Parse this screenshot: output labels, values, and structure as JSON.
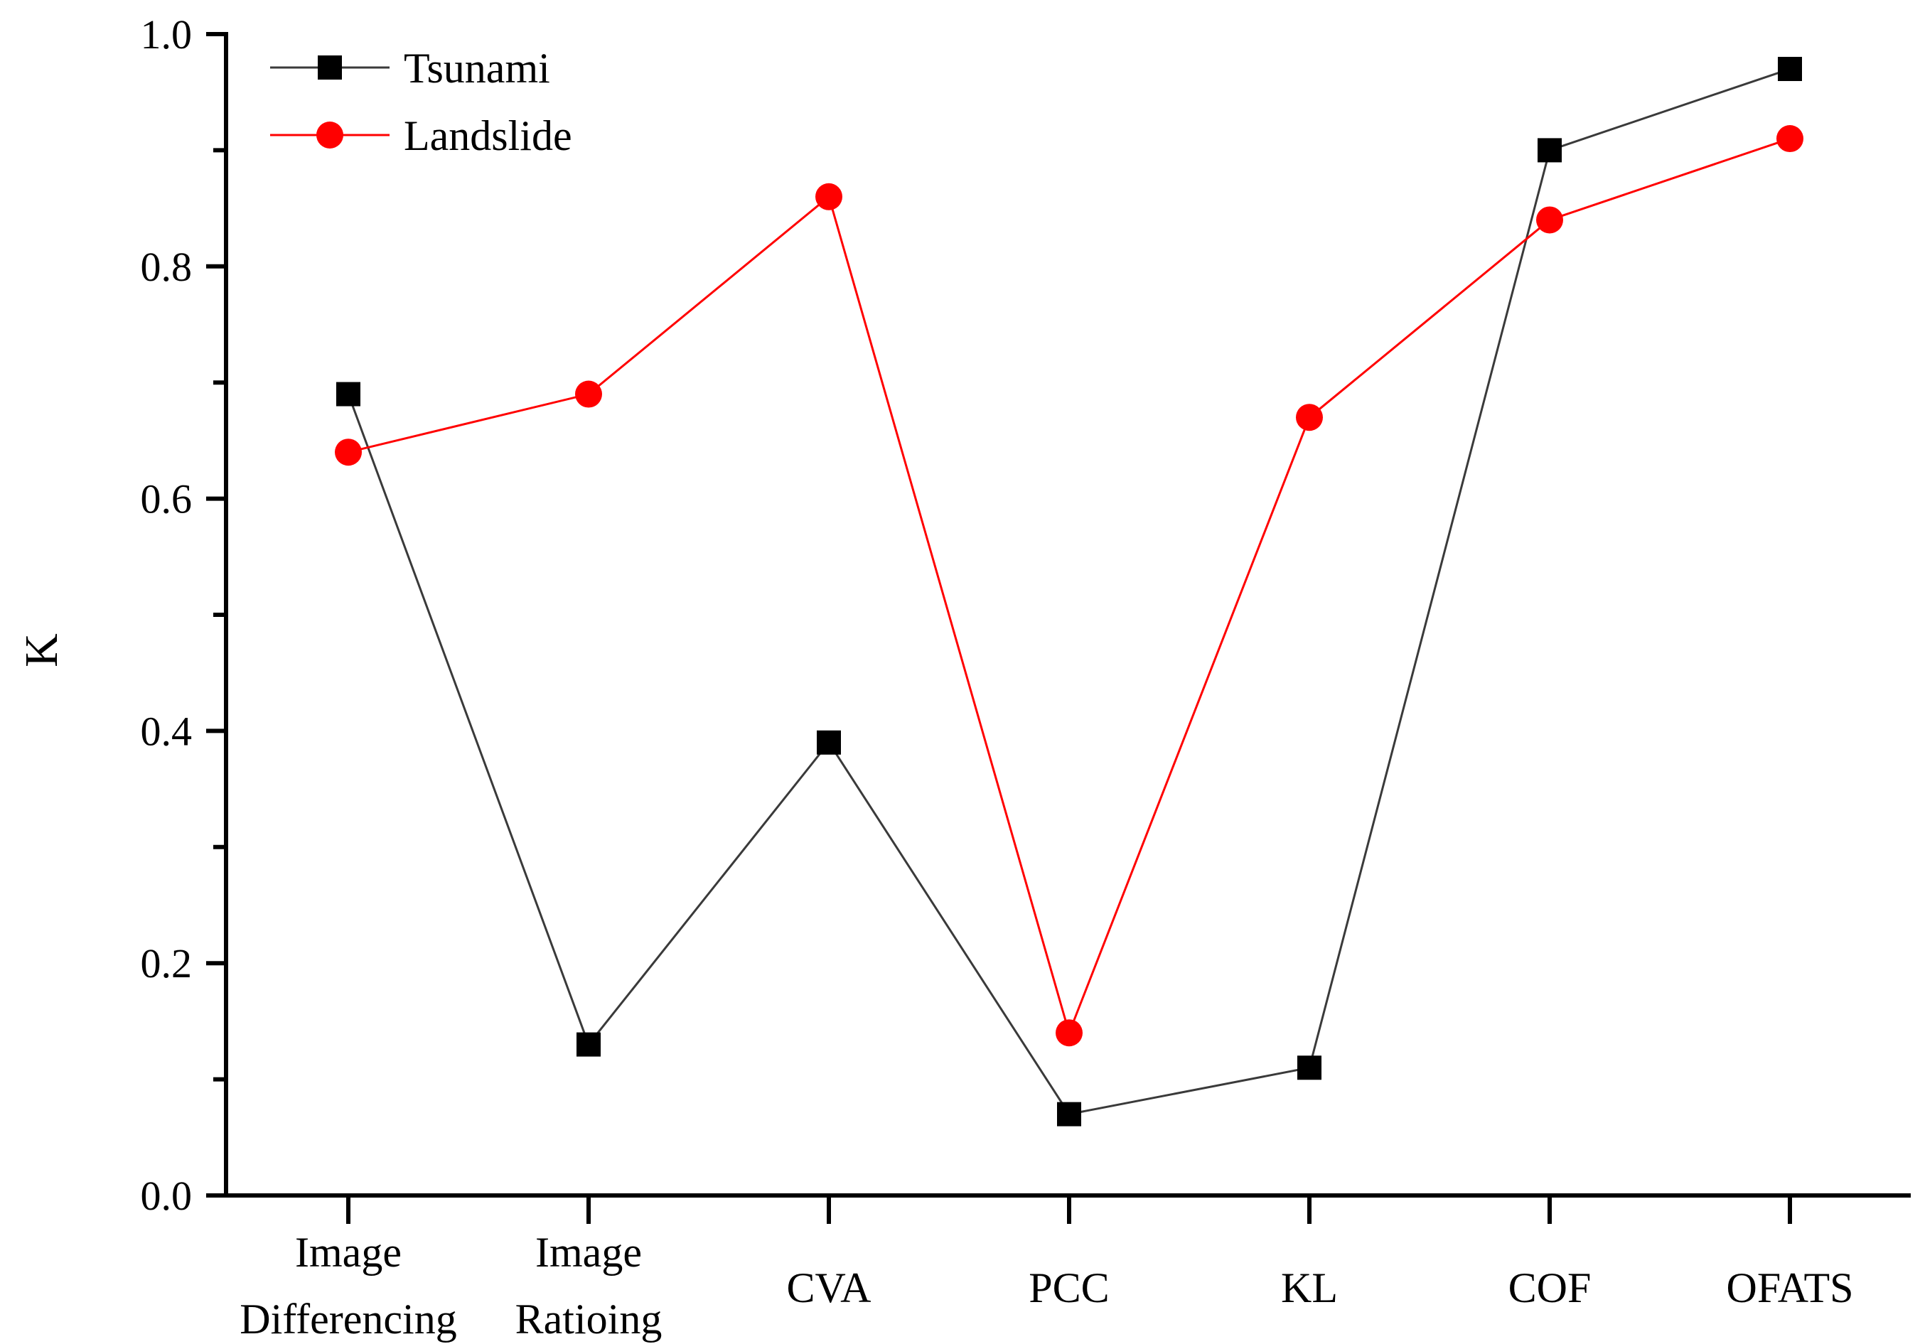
{
  "chart_data": {
    "type": "line",
    "title": "",
    "xlabel": "",
    "ylabel": "K",
    "ylim": [
      0.0,
      1.0
    ],
    "yticks": [
      0.0,
      0.2,
      0.4,
      0.6,
      0.8,
      1.0
    ],
    "ytick_labels": [
      "0.0",
      "0.2",
      "0.4",
      "0.6",
      "0.8",
      "1.0"
    ],
    "yminor_step": 0.1,
    "grid": false,
    "legend_position": "top-left",
    "categories": [
      [
        "Image",
        "Differencing"
      ],
      [
        "Image",
        "Ratioing"
      ],
      [
        "CVA"
      ],
      [
        "PCC"
      ],
      [
        "KL"
      ],
      [
        "COF"
      ],
      [
        "OFATS"
      ]
    ],
    "series": [
      {
        "name": "Tsunami",
        "color": "#3a3a3a",
        "marker_color": "#000000",
        "marker": "square",
        "values": [
          0.69,
          0.13,
          0.39,
          0.07,
          0.11,
          0.9,
          0.97
        ]
      },
      {
        "name": "Landslide",
        "color": "#ff0000",
        "marker_color": "#ff0000",
        "marker": "circle",
        "values": [
          0.64,
          0.69,
          0.86,
          0.14,
          0.67,
          0.84,
          0.91
        ]
      }
    ]
  }
}
